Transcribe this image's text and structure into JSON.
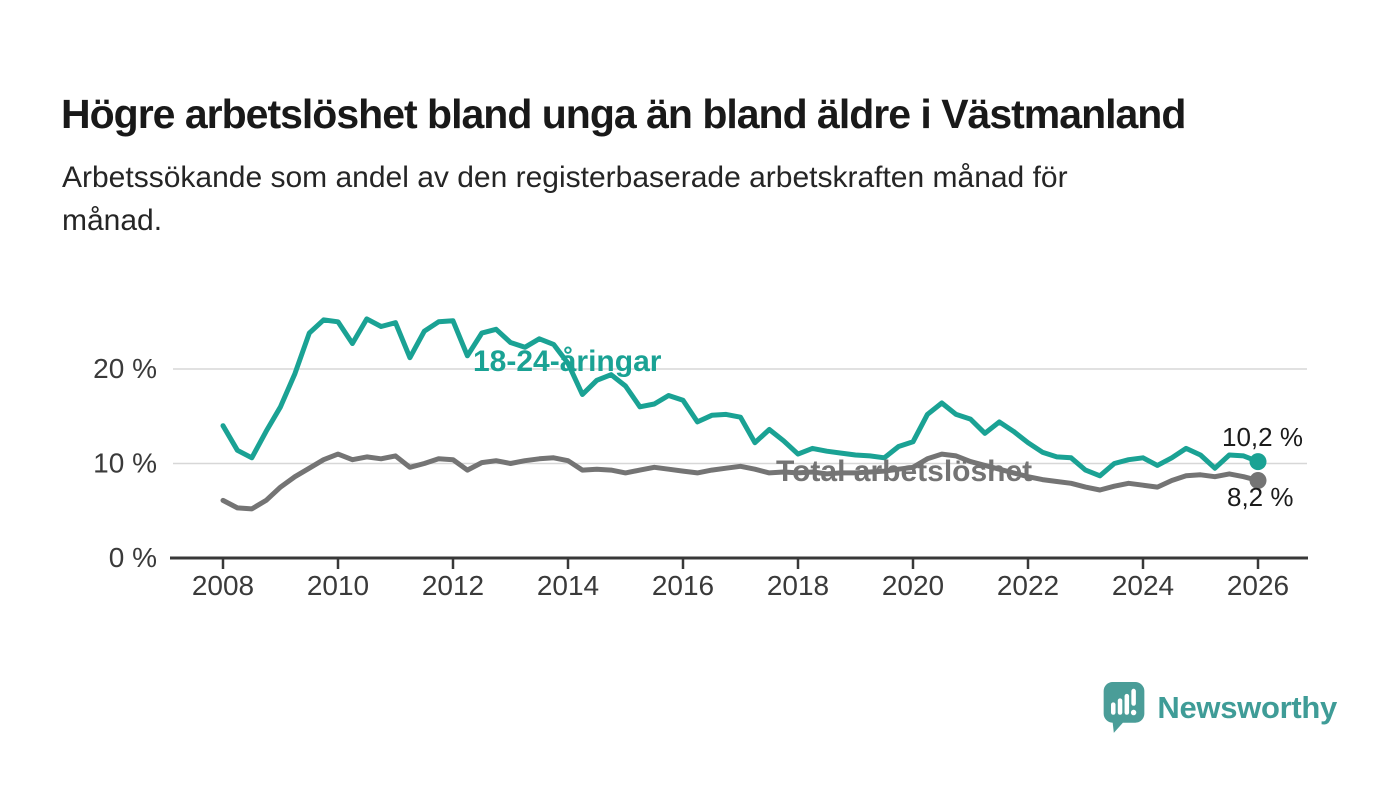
{
  "header": {
    "title": "Högre arbetslöshet bland unga än bland äldre i Västmanland",
    "subtitle": "Arbetssökande som andel av den registerbaserade arbetskraften månad för månad.",
    "subtitle_lines": [
      "Arbetssökande som andel av den registerbaserade arbetskraften månad för",
      "månad."
    ]
  },
  "chart_data": {
    "type": "line",
    "title": "",
    "xlabel": "",
    "ylabel": "",
    "x_unit": "decimal year, quarterly samples",
    "x_start": 2008,
    "x_step_years": 0.25,
    "x_range": [
      2008,
      2026
    ],
    "ylim": [
      0,
      27.5
    ],
    "grid": "horizontal",
    "legend_position": "inline-labels",
    "x_ticks": [
      2008,
      2010,
      2012,
      2014,
      2016,
      2018,
      2020,
      2022,
      2024,
      2026
    ],
    "y_ticks": [
      {
        "value": 0,
        "label": "0 %"
      },
      {
        "value": 10,
        "label": "10 %"
      },
      {
        "value": 20,
        "label": "20 %"
      }
    ],
    "series": [
      {
        "name": "18-24-åringar",
        "color": "#1aa294",
        "end_label": "10,2 %",
        "end_value": 10.2,
        "values": [
          14.0,
          11.4,
          10.6,
          13.4,
          16.0,
          19.5,
          23.8,
          25.2,
          25.0,
          22.7,
          25.3,
          24.5,
          24.9,
          21.2,
          24.0,
          25.0,
          25.1,
          21.4,
          23.8,
          24.2,
          22.8,
          22.3,
          23.2,
          22.6,
          20.6,
          17.3,
          18.8,
          19.4,
          18.2,
          16.0,
          16.3,
          17.2,
          16.7,
          14.4,
          15.1,
          15.2,
          14.9,
          12.2,
          13.6,
          12.4,
          11.0,
          11.6,
          11.3,
          11.1,
          10.9,
          10.8,
          10.6,
          11.8,
          12.3,
          15.2,
          16.4,
          15.2,
          14.7,
          13.2,
          14.4,
          13.4,
          12.2,
          11.2,
          10.7,
          10.6,
          9.3,
          8.7,
          10.0,
          10.4,
          10.6,
          9.8,
          10.6,
          11.6,
          10.9,
          9.5,
          10.9,
          10.8,
          10.2
        ]
      },
      {
        "name": "Total arbetslöshet",
        "color": "#747474",
        "end_label": "8,2 %",
        "end_value": 8.2,
        "values": [
          6.1,
          5.3,
          5.2,
          6.1,
          7.5,
          8.6,
          9.5,
          10.4,
          11.0,
          10.4,
          10.7,
          10.5,
          10.8,
          9.6,
          10.0,
          10.5,
          10.4,
          9.3,
          10.1,
          10.3,
          10.0,
          10.3,
          10.5,
          10.6,
          10.3,
          9.3,
          9.4,
          9.3,
          9.0,
          9.3,
          9.6,
          9.4,
          9.2,
          9.0,
          9.3,
          9.5,
          9.7,
          9.4,
          9.0,
          9.1,
          9.0,
          9.1,
          8.9,
          9.0,
          9.0,
          9.1,
          9.2,
          9.4,
          9.6,
          10.5,
          11.0,
          10.8,
          10.2,
          9.8,
          9.4,
          9.0,
          8.6,
          8.3,
          8.1,
          7.9,
          7.5,
          7.2,
          7.6,
          7.9,
          7.7,
          7.5,
          8.2,
          8.7,
          8.8,
          8.6,
          8.9,
          8.6,
          8.2
        ]
      }
    ]
  },
  "colors": {
    "accent_teal": "#1aa294",
    "line_gray": "#747474",
    "axis": "#383838",
    "gridline": "#d7d7d7",
    "logo_teal": "#4a9d98"
  },
  "footer": {
    "brand": "Newsworthy"
  }
}
